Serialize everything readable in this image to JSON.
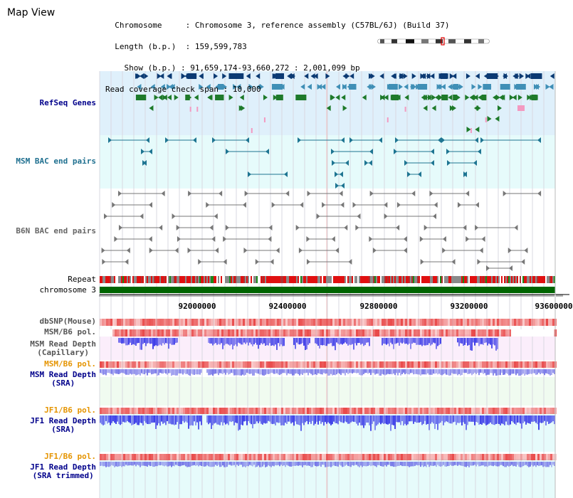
{
  "title": "Map View",
  "info": {
    "chromosome_label": "Chromosome",
    "chromosome_value": "Chromosome 3, reference assembly (C57BL/6J) (Build 37)",
    "length_label": "Length (b.p.)",
    "length_value": "159,599,783",
    "show_label": "Show (b.p.)",
    "show_value": "91,659,174-93,660,272 : 2,001,099 bp",
    "span_label": "Read coverage check span",
    "span_value": "10,000"
  },
  "tracks": {
    "refseq": "RefSeq Genes",
    "msm_bac": "MSM BAC end pairs",
    "b6n_bac": "B6N BAC end pairs",
    "repeat": "Repeat",
    "chromosome": "chromosome 3",
    "dbsnp": "dbSNP(Mouse)",
    "msm_pol": "MSM/B6 pol.",
    "msm_depth_cap_1": "MSM Read Depth",
    "msm_depth_cap_2": "(Capillary)",
    "msm_pol_2": "MSM/B6 pol.",
    "msm_depth_sra_1": "MSM Read Depth",
    "msm_depth_sra_2": "(SRA)",
    "jf1_pol": "JF1/B6 pol.",
    "jf1_depth_sra_1": "JF1 Read Depth",
    "jf1_depth_sra_2": "(SRA)",
    "jf1_pol_2": "JF1/B6 pol.",
    "jf1_depth_trim_1": "JF1 Read Depth",
    "jf1_depth_trim_2": "(SRA trimmed)"
  },
  "axis": {
    "ticks": [
      "92000000",
      "92400000",
      "92800000",
      "93200000",
      "93600000"
    ]
  },
  "colors": {
    "refseq_bg": "#dff0fb",
    "msm_bg": "#e6fbfb",
    "depth_bg_pink": "#fbeefb",
    "depth_bg_green": "#f0fbf0",
    "gene_dark": "#0b3a73",
    "gene_mid": "#3f8fb6",
    "gene_green": "#1e7a2a",
    "bac_teal": "#1e7592",
    "bac_gray": "#777777",
    "depth_blue": "#2b2be6",
    "pol_red": "#e84040",
    "chrom_green": "#006400",
    "label_blue": "#00008b",
    "label_orange": "#e59400"
  }
}
